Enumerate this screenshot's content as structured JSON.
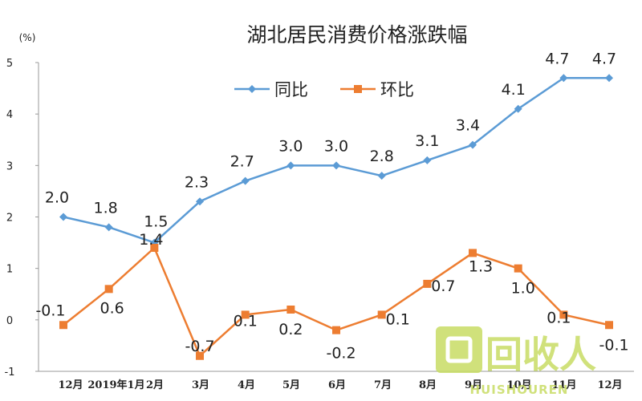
{
  "chart_data": {
    "type": "line",
    "title": "湖北居民消费价格涨跌幅",
    "unit_label": "(%)",
    "categories": [
      "12月",
      "2019年1月",
      "2月",
      "3月",
      "4月",
      "5月",
      "6月",
      "7月",
      "8月",
      "9月",
      "10月",
      "11月",
      "12月"
    ],
    "ylim": [
      -1,
      5
    ],
    "yticks": [
      -1,
      0,
      1,
      2,
      3,
      4,
      5
    ],
    "grid": false,
    "legend_position": "top-center",
    "series": [
      {
        "name": "同比",
        "color": "#5b9bd5",
        "marker": "diamond",
        "values": [
          2.0,
          1.8,
          1.5,
          2.3,
          2.7,
          3.0,
          3.0,
          2.8,
          3.1,
          3.4,
          4.1,
          4.7,
          4.7
        ],
        "labels": [
          "2.0",
          "1.8",
          "1.5",
          "2.3",
          "2.7",
          "3.0",
          "3.0",
          "2.8",
          "3.1",
          "3.4",
          "4.1",
          "4.7",
          "4.7"
        ]
      },
      {
        "name": "环比",
        "color": "#ed7d31",
        "marker": "square",
        "values": [
          -0.1,
          0.6,
          1.4,
          -0.7,
          0.1,
          0.2,
          -0.2,
          0.1,
          0.7,
          1.3,
          1.0,
          0.1,
          -0.1
        ],
        "labels": [
          "-0.1",
          "0.6",
          "1.4",
          "-0.7",
          "0.1",
          "0.2",
          "-0.2",
          "0.1",
          "0.7",
          "1.3",
          "1.0",
          "0.1",
          "-0.1"
        ]
      }
    ]
  },
  "watermark": {
    "logo_text": "回收人",
    "sub_text": "HUISHOUREN",
    "color": "#c8dc64"
  }
}
